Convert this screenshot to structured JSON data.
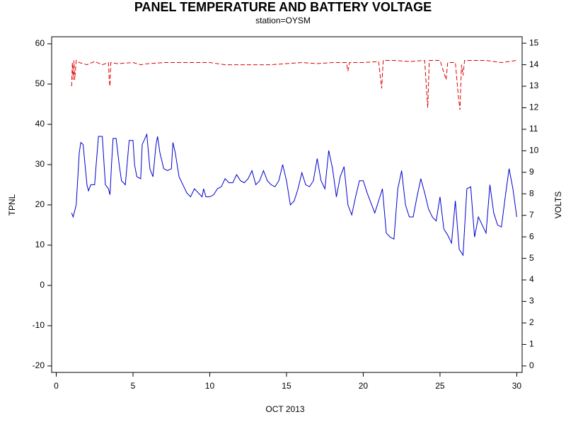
{
  "chart_data": {
    "type": "line",
    "title": "PANEL TEMPERATURE AND BATTERY VOLTAGE",
    "subtitle": "station=OYSM",
    "x_label": "OCT 2013",
    "y_label": "TPNL",
    "y2_label": "VOLTS",
    "xlim": [
      -0.3,
      30.35
    ],
    "xticks": [
      0,
      5,
      10,
      15,
      20,
      25,
      30
    ],
    "ylim": [
      -21.6,
      61.75
    ],
    "yticks": [
      -20,
      -10,
      0,
      10,
      20,
      30,
      40,
      50,
      60
    ],
    "y2lim": [
      -0.3,
      15.3
    ],
    "y2ticks": [
      0,
      1,
      2,
      3,
      4,
      5,
      6,
      7,
      8,
      9,
      10,
      11,
      12,
      13,
      14,
      15
    ],
    "grid": false,
    "series": [
      {
        "name": "TPNL",
        "color": "#0000cc",
        "axis": "y",
        "dashed": false,
        "x": [
          1.0,
          1.1,
          1.3,
          1.5,
          1.6,
          1.75,
          2.0,
          2.1,
          2.25,
          2.5,
          2.6,
          2.75,
          3.0,
          3.2,
          3.4,
          3.5,
          3.6,
          3.7,
          3.9,
          4.1,
          4.25,
          4.5,
          4.75,
          5.0,
          5.1,
          5.25,
          5.5,
          5.6,
          5.9,
          6.1,
          6.3,
          6.5,
          6.6,
          6.75,
          7.0,
          7.25,
          7.5,
          7.6,
          7.75,
          8.0,
          8.25,
          8.5,
          8.75,
          9.0,
          9.25,
          9.5,
          9.6,
          9.75,
          10.0,
          10.25,
          10.5,
          10.75,
          11.0,
          11.25,
          11.5,
          11.75,
          12.0,
          12.25,
          12.5,
          12.75,
          13.0,
          13.25,
          13.5,
          13.75,
          14.0,
          14.25,
          14.5,
          14.75,
          15.0,
          15.25,
          15.5,
          15.75,
          16.0,
          16.25,
          16.5,
          16.75,
          17.0,
          17.25,
          17.5,
          17.75,
          18.0,
          18.25,
          18.5,
          18.75,
          19.0,
          19.25,
          19.5,
          19.75,
          20.0,
          20.25,
          20.5,
          20.75,
          21.0,
          21.25,
          21.5,
          21.75,
          22.0,
          22.25,
          22.5,
          22.75,
          23.0,
          23.25,
          23.5,
          23.75,
          24.0,
          24.25,
          24.5,
          24.75,
          25.0,
          25.25,
          25.5,
          25.75,
          26.0,
          26.25,
          26.5,
          26.75,
          27.0,
          27.25,
          27.5,
          27.75,
          28.0,
          28.25,
          28.5,
          28.75,
          29.0,
          29.25,
          29.5,
          29.75,
          30.0
        ],
        "values": [
          18,
          17,
          20,
          33,
          35.5,
          35,
          25,
          23.5,
          25,
          25,
          30,
          37,
          37,
          25,
          24,
          22.5,
          30,
          36.5,
          36.5,
          30,
          26,
          25,
          36,
          36,
          30,
          27,
          26.5,
          35,
          37.5,
          29,
          27,
          35,
          37,
          33,
          29,
          28.5,
          29,
          35.5,
          33,
          27,
          25,
          23,
          22,
          24,
          23,
          22,
          24,
          22,
          22,
          22.5,
          24,
          24.5,
          26.5,
          25.5,
          25.5,
          27.5,
          26,
          25.5,
          26.5,
          28.5,
          25,
          26,
          28.5,
          26,
          25,
          24.5,
          26,
          30,
          26,
          20,
          21,
          24,
          28,
          25,
          24.5,
          26,
          31.5,
          26,
          24,
          33.5,
          29,
          22,
          27,
          29.5,
          20,
          17.5,
          22,
          26,
          26,
          23,
          20.5,
          18,
          21,
          24,
          13,
          12,
          11.5,
          24,
          28.5,
          20,
          17,
          17,
          22,
          26.5,
          23,
          19,
          17,
          16,
          22,
          14,
          12.5,
          10.5,
          21,
          9,
          7.5,
          24,
          24.5,
          12,
          17,
          15,
          13,
          25,
          18,
          15,
          14.5,
          22,
          29,
          24,
          17
        ]
      },
      {
        "name": "VOLTS",
        "color": "#dd0000",
        "axis": "y2",
        "dashed": true,
        "x": [
          1.0,
          1.05,
          1.1,
          1.15,
          1.2,
          1.3,
          1.5,
          2.0,
          2.5,
          3.0,
          3.4,
          3.45,
          3.5,
          3.55,
          4.0,
          5.0,
          5.5,
          6.0,
          7.0,
          8.0,
          9.0,
          10.0,
          11.0,
          12.0,
          13.0,
          14.0,
          15.0,
          16.0,
          17.0,
          18.0,
          18.9,
          19.0,
          19.1,
          20.0,
          21.0,
          21.2,
          21.3,
          22.0,
          23.0,
          24.0,
          24.2,
          24.3,
          25.0,
          25.4,
          25.5,
          26.0,
          26.2,
          26.3,
          26.4,
          26.5,
          26.6,
          27.0,
          28.0,
          29.0,
          30.0
        ],
        "values": [
          13.0,
          14.1,
          13.3,
          14.2,
          13.3,
          14.2,
          14.1,
          14.0,
          14.15,
          14.0,
          14.1,
          13.3,
          13.0,
          14.1,
          14.05,
          14.1,
          14.0,
          14.05,
          14.1,
          14.1,
          14.1,
          14.1,
          14.0,
          14.0,
          14.0,
          14.0,
          14.05,
          14.1,
          14.05,
          14.1,
          14.1,
          13.7,
          14.1,
          14.1,
          14.15,
          12.9,
          14.2,
          14.2,
          14.15,
          14.2,
          12.0,
          14.2,
          14.2,
          13.3,
          14.1,
          14.1,
          12.5,
          11.9,
          14.0,
          13.5,
          14.2,
          14.2,
          14.2,
          14.1,
          14.2
        ]
      }
    ]
  }
}
